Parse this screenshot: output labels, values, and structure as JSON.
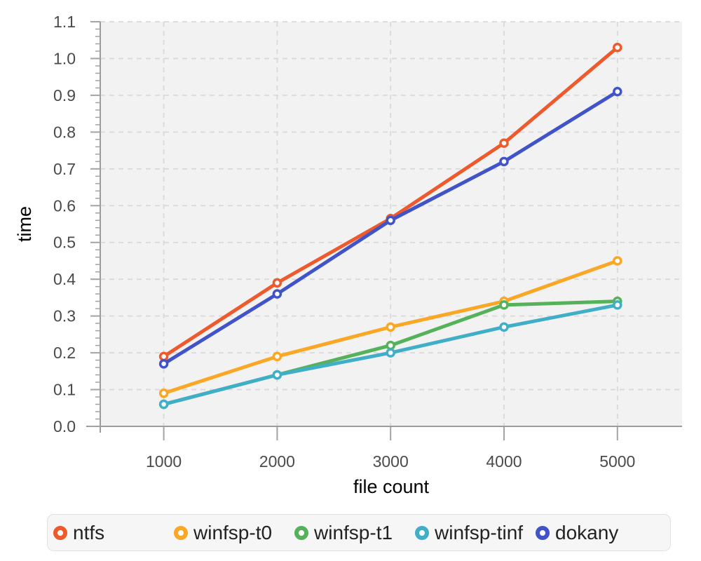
{
  "chart_data": {
    "type": "line",
    "title": "",
    "xlabel": "file count",
    "ylabel": "time",
    "x": [
      1000,
      2000,
      3000,
      4000,
      5000
    ],
    "series": [
      {
        "name": "ntfs",
        "color": "#ee5a2c",
        "values": [
          0.19,
          0.39,
          0.565,
          0.77,
          1.03
        ]
      },
      {
        "name": "winfsp-t0",
        "color": "#faa726",
        "values": [
          0.09,
          0.19,
          0.27,
          0.34,
          0.45
        ]
      },
      {
        "name": "winfsp-t1",
        "color": "#55b25a",
        "values": [
          0.06,
          0.14,
          0.22,
          0.33,
          0.34
        ]
      },
      {
        "name": "winfsp-tinf",
        "color": "#41aec8",
        "values": [
          0.06,
          0.14,
          0.2,
          0.27,
          0.33
        ]
      },
      {
        "name": "dokany",
        "color": "#4153c8",
        "values": [
          0.17,
          0.36,
          0.56,
          0.72,
          0.91
        ]
      }
    ],
    "xlim": [
      440,
      5570
    ],
    "ylim": [
      0,
      1.1
    ],
    "x_tick_labels": [
      "1000",
      "2000",
      "3000",
      "4000",
      "5000"
    ],
    "y_tick_labels": [
      "0.0",
      "0.1",
      "0.2",
      "0.3",
      "0.4",
      "0.5",
      "0.6",
      "0.7",
      "0.8",
      "0.9",
      "1.0",
      "1.1"
    ],
    "y_minor_step": 0.02,
    "grid": "dashed",
    "legend_position": "bottom"
  },
  "theme": {
    "background": "#ffffff",
    "plot_background": "#f2f2f3",
    "grid_color": "#d9d9d9",
    "axis_color": "#9c9c9c",
    "tick_color": "#a3a3a3",
    "tick_label_color": "#4a4a4a",
    "axis_title_color": "#333333",
    "marker_fill": "#ffffff",
    "legend_background": "#f6f6f7",
    "legend_border": "#e0e0e2",
    "legend_text_color": "#222222"
  }
}
